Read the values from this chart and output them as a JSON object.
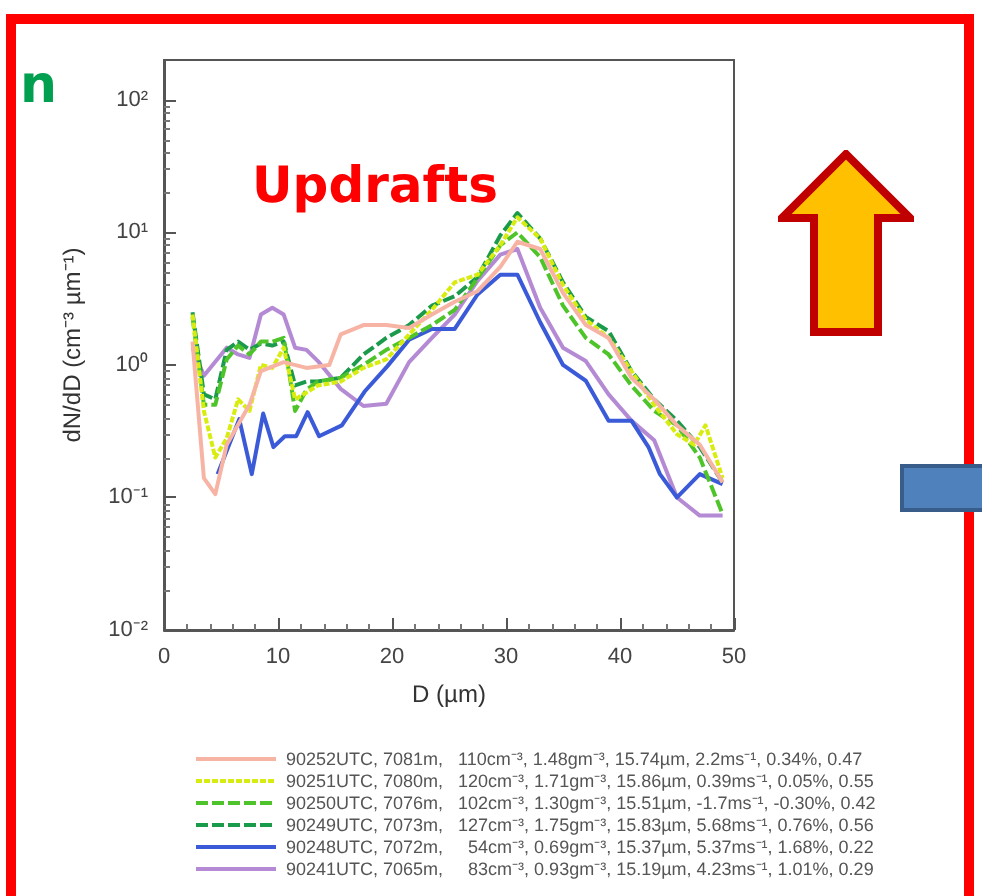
{
  "chart_data": {
    "type": "line",
    "xlabel": "D (µm)",
    "ylabel": "dN/dD (cm⁻³ µm⁻¹)",
    "annotations": [
      "Updrafts",
      "n"
    ],
    "xlim": [
      0,
      50
    ],
    "xticks": [
      0,
      10,
      20,
      30,
      40,
      50
    ],
    "ylim": [
      0.01,
      200
    ],
    "yticks": [
      {
        "value": 0.01,
        "label": "10⁻²"
      },
      {
        "value": 0.1,
        "label": "10⁻¹"
      },
      {
        "value": 1,
        "label": "10⁰"
      },
      {
        "value": 10,
        "label": "10¹"
      },
      {
        "value": 100,
        "label": "10²"
      }
    ],
    "log": "y",
    "grid": false,
    "legend": "bottom",
    "marker": "none",
    "series": [
      {
        "name": "90252UTC, 7081m,   110cm⁻³, 1.48gm⁻³, 15.74µm, 2.2ms⁻¹, 0.34%, 0.47",
        "color": "#f7b4a4",
        "line_style": "solid",
        "x": [
          2.5,
          3.5,
          4.5,
          5.5,
          7.5,
          8.5,
          10.5,
          12.5,
          14.5,
          15.5,
          17.5,
          19.5,
          21.5,
          23.5,
          25.5,
          27.5,
          29.5,
          31,
          33,
          35,
          37,
          39,
          41,
          43,
          45,
          47,
          49
        ],
        "values": [
          1.5,
          0.14,
          0.106,
          0.25,
          0.5,
          0.9,
          1.05,
          0.95,
          1.0,
          1.7,
          2.0,
          2.0,
          1.9,
          2.4,
          3.0,
          3.6,
          5.5,
          8.5,
          7.5,
          3.5,
          2.0,
          1.6,
          0.8,
          0.55,
          0.35,
          0.25,
          0.13
        ]
      },
      {
        "name": "90251UTC, 7080m,   120cm⁻³, 1.71gm⁻³, 15.86µm, 0.39ms⁻¹, 0.05%, 0.55",
        "color": "#d8ec10",
        "line_style": "dotted",
        "x": [
          2.5,
          3.5,
          4.5,
          5.5,
          6.5,
          7.5,
          8.5,
          9.5,
          10.5,
          11.5,
          12.5,
          13.5,
          15.5,
          17.5,
          19.5,
          21.5,
          23.5,
          25.5,
          27.5,
          29.5,
          31,
          33,
          35,
          37,
          39,
          41,
          43,
          45,
          46.5,
          47.5,
          49
        ],
        "values": [
          2.4,
          0.45,
          0.2,
          0.28,
          0.55,
          0.45,
          1.0,
          0.95,
          1.35,
          0.55,
          0.62,
          0.7,
          0.75,
          0.95,
          1.1,
          1.7,
          2.6,
          4.2,
          4.8,
          8.0,
          13,
          9,
          4.0,
          2.2,
          1.6,
          0.9,
          0.5,
          0.3,
          0.25,
          0.35,
          0.14
        ]
      },
      {
        "name": "90250UTC, 7076m,   102cm⁻³, 1.30gm⁻³, 15.51µm, -1.7ms⁻¹, -0.30%, 0.42",
        "color": "#4fc42a",
        "line_style": "dashed",
        "x": [
          2.5,
          3.5,
          4.5,
          5.5,
          6.5,
          7.5,
          8.5,
          9.5,
          10.5,
          11.5,
          12.5,
          13.5,
          15.5,
          17.5,
          19.5,
          21.5,
          23.5,
          25.5,
          27.5,
          29.5,
          31,
          33,
          35,
          37,
          39,
          41,
          43,
          45,
          47,
          49
        ],
        "values": [
          2.3,
          0.5,
          0.5,
          1.1,
          1.4,
          1.2,
          1.5,
          1.5,
          1.6,
          0.45,
          0.65,
          0.75,
          0.8,
          1.0,
          1.3,
          1.6,
          2.0,
          2.6,
          4.5,
          8.0,
          10,
          6.5,
          2.8,
          1.6,
          1.2,
          0.7,
          0.45,
          0.35,
          0.2,
          0.075
        ]
      },
      {
        "name": "90249UTC, 7073m,   127cm⁻³, 1.75gm⁻³, 15.83µm, 5.68ms⁻¹, 0.76%, 0.56",
        "color": "#1a9a4a",
        "line_style": "dashed",
        "x": [
          2.5,
          3.5,
          4.5,
          5.5,
          6.5,
          7.5,
          8.5,
          9.5,
          10.5,
          11.5,
          12.5,
          13.5,
          15.5,
          17.5,
          19.5,
          21.5,
          23.5,
          25.5,
          27.5,
          29.5,
          31,
          33,
          35,
          37,
          39,
          41,
          43,
          45,
          47,
          49
        ],
        "values": [
          2.5,
          0.6,
          0.55,
          1.3,
          1.5,
          1.3,
          1.45,
          1.4,
          1.5,
          0.7,
          0.75,
          0.75,
          0.8,
          1.2,
          1.6,
          2.0,
          2.8,
          3.3,
          4.6,
          9.5,
          14,
          9,
          4.2,
          2.3,
          1.8,
          0.9,
          0.55,
          0.38,
          0.24,
          0.13
        ]
      },
      {
        "name": "90248UTC, 7072m,     54cm⁻³, 0.69gm⁻³, 15.37µm, 5.37ms⁻¹, 1.68%, 0.22",
        "color": "#3a5ad8",
        "line_style": "solid",
        "x": [
          4.7,
          6.6,
          7.7,
          8.7,
          9.6,
          10.6,
          11.6,
          12.6,
          13.6,
          15.6,
          17.6,
          19.6,
          21.5,
          23.5,
          25.5,
          27.5,
          29.5,
          31,
          33,
          35,
          37,
          39,
          41,
          42.5,
          43.5,
          45,
          47,
          49
        ],
        "values": [
          0.15,
          0.39,
          0.15,
          0.43,
          0.24,
          0.29,
          0.29,
          0.44,
          0.29,
          0.35,
          0.63,
          0.98,
          1.55,
          1.87,
          1.87,
          3.4,
          4.8,
          4.8,
          2.1,
          1.0,
          0.76,
          0.38,
          0.38,
          0.24,
          0.15,
          0.1,
          0.15,
          0.126
        ]
      },
      {
        "name": "90241UTC, 7065m,     83cm⁻³, 0.93gm⁻³, 15.19µm, 4.23ms⁻¹, 1.01%, 0.29",
        "color": "#b48ad4",
        "line_style": "solid",
        "x": [
          2.5,
          3.5,
          5.5,
          6.5,
          7.5,
          8.5,
          9.5,
          10.5,
          11.5,
          12.5,
          13.5,
          15.5,
          17.5,
          19.5,
          21.5,
          23.5,
          25.5,
          27.5,
          29.5,
          31,
          33,
          35,
          37,
          39,
          41,
          43,
          45,
          47,
          49
        ],
        "values": [
          1.35,
          0.83,
          1.35,
          1.2,
          1.13,
          2.4,
          2.7,
          2.4,
          1.35,
          1.3,
          1.07,
          0.66,
          0.49,
          0.51,
          1.05,
          1.6,
          2.4,
          4.3,
          6.8,
          7.5,
          2.7,
          1.35,
          1.07,
          0.6,
          0.38,
          0.27,
          0.1,
          0.073,
          0.073
        ]
      }
    ]
  }
}
